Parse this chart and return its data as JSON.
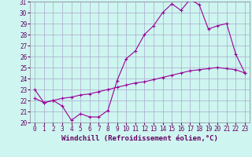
{
  "xlabel": "Windchill (Refroidissement éolien,°C)",
  "background_color": "#cef5f0",
  "line_color": "#990099",
  "grid_color": "#aaaacc",
  "ylim": [
    20,
    31
  ],
  "xlim": [
    -0.5,
    23.5
  ],
  "yticks": [
    20,
    21,
    22,
    23,
    24,
    25,
    26,
    27,
    28,
    29,
    30,
    31
  ],
  "xticks": [
    0,
    1,
    2,
    3,
    4,
    5,
    6,
    7,
    8,
    9,
    10,
    11,
    12,
    13,
    14,
    15,
    16,
    17,
    18,
    19,
    20,
    21,
    22,
    23
  ],
  "line1_x": [
    0,
    1,
    2,
    3,
    4,
    5,
    6,
    7,
    8,
    9,
    10,
    11,
    12,
    13,
    14,
    15,
    16,
    17,
    18,
    19,
    20,
    21,
    22,
    23
  ],
  "line1_y": [
    23.0,
    21.8,
    22.0,
    21.5,
    20.2,
    20.8,
    20.5,
    20.5,
    21.1,
    23.8,
    25.8,
    26.5,
    28.0,
    28.8,
    30.0,
    30.8,
    30.2,
    31.2,
    30.7,
    28.5,
    28.8,
    29.0,
    26.2,
    24.5
  ],
  "line2_x": [
    0,
    1,
    2,
    3,
    4,
    5,
    6,
    7,
    8,
    9,
    10,
    11,
    12,
    13,
    14,
    15,
    16,
    17,
    18,
    19,
    20,
    21,
    22,
    23
  ],
  "line2_y": [
    22.2,
    21.8,
    22.0,
    22.2,
    22.3,
    22.5,
    22.6,
    22.8,
    23.0,
    23.2,
    23.4,
    23.6,
    23.7,
    23.9,
    24.1,
    24.3,
    24.5,
    24.7,
    24.8,
    24.9,
    25.0,
    24.9,
    24.8,
    24.5
  ],
  "markersize": 3,
  "linewidth": 0.8,
  "tick_fontsize": 5.5,
  "label_fontsize": 6.5
}
